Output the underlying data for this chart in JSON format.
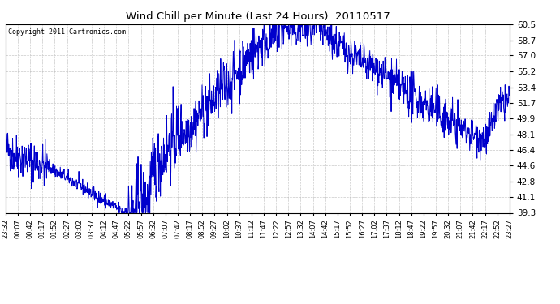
{
  "title": "Wind Chill per Minute (Last 24 Hours)  20110517",
  "copyright": "Copyright 2011 Cartronics.com",
  "yticks": [
    39.3,
    41.1,
    42.8,
    44.6,
    46.4,
    48.1,
    49.9,
    51.7,
    53.4,
    55.2,
    57.0,
    58.7,
    60.5
  ],
  "ylim": [
    39.3,
    60.5
  ],
  "line_color": "#0000cc",
  "bg_color": "#ffffff",
  "grid_color": "#bbbbbb",
  "xtick_labels": [
    "23:32",
    "00:07",
    "00:42",
    "01:17",
    "01:52",
    "02:27",
    "03:02",
    "03:37",
    "04:12",
    "04:47",
    "05:22",
    "05:57",
    "06:32",
    "07:07",
    "07:42",
    "08:17",
    "08:52",
    "09:27",
    "10:02",
    "10:37",
    "11:12",
    "11:47",
    "12:22",
    "12:57",
    "13:32",
    "14:07",
    "14:42",
    "15:17",
    "15:52",
    "16:27",
    "17:02",
    "17:37",
    "18:12",
    "18:47",
    "19:22",
    "19:57",
    "20:32",
    "21:07",
    "21:42",
    "22:17",
    "22:52",
    "23:27"
  ],
  "fig_width": 6.9,
  "fig_height": 3.75,
  "dpi": 100
}
